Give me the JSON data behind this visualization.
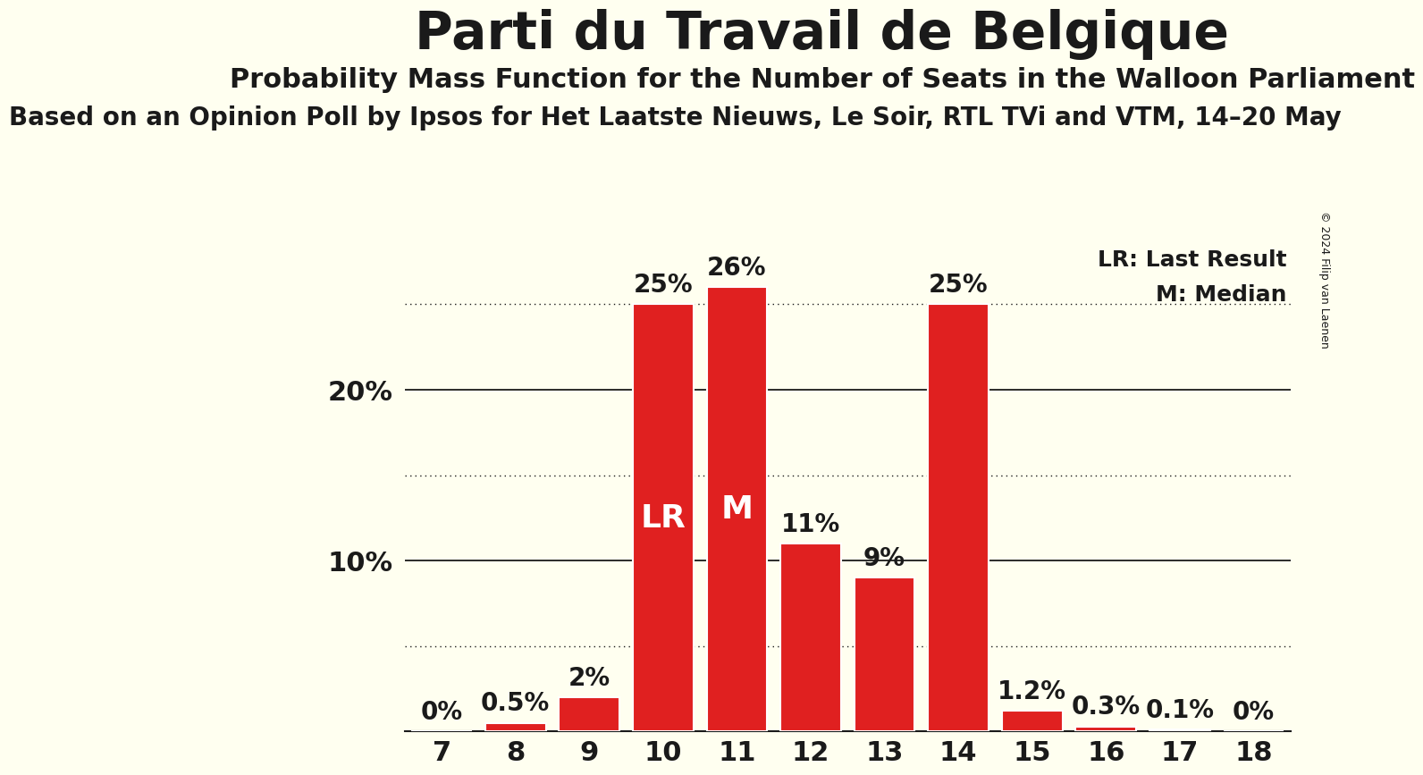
{
  "title": "Parti du Travail de Belgique",
  "subtitle": "Probability Mass Function for the Number of Seats in the Walloon Parliament",
  "subtitle2": "Based on an Opinion Poll by Ipsos for Het Laatste Nieuws, Le Soir, RTL TVi and VTM, 14–20 May",
  "copyright": "© 2024 Filip van Laenen",
  "categories": [
    7,
    8,
    9,
    10,
    11,
    12,
    13,
    14,
    15,
    16,
    17,
    18
  ],
  "values": [
    0,
    0.5,
    2,
    25,
    26,
    11,
    9,
    25,
    1.2,
    0.3,
    0.1,
    0
  ],
  "bar_color": "#e02020",
  "bar_edge_color": "#ffffff",
  "background_color": "#fffff0",
  "label_color": "#1a1a1a",
  "LR_seat": 10,
  "M_seat": 11,
  "LR_label": "LR",
  "M_label": "M",
  "legend_LR": "LR: Last Result",
  "legend_M": "M: Median",
  "ylim": [
    0,
    29
  ],
  "dotted_lines": [
    5,
    15,
    25
  ],
  "solid_lines": [
    10,
    20
  ],
  "bar_label_fontsize": 20,
  "inner_label_fontsize": 26,
  "axis_tick_fontsize": 22,
  "title_fontsize": 42,
  "subtitle_fontsize": 22,
  "subtitle2_fontsize": 20,
  "legend_fontsize": 18,
  "copyright_fontsize": 9
}
